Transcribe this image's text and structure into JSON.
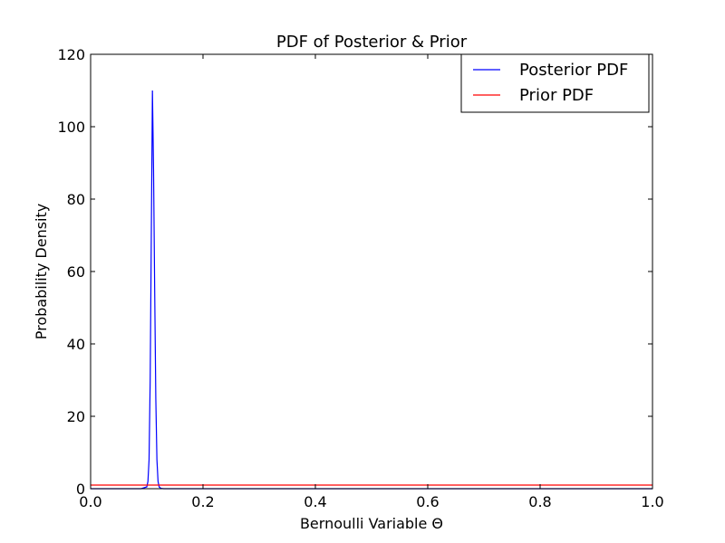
{
  "chart_data": {
    "type": "line",
    "title": "PDF of Posterior & Prior",
    "xlabel": "Bernoulli Variable Θ",
    "ylabel": "Probability Density",
    "xlim": [
      0.0,
      1.0
    ],
    "ylim": [
      0,
      120
    ],
    "xticks": [
      0.0,
      0.2,
      0.4,
      0.6,
      0.8,
      1.0
    ],
    "xtick_labels": [
      "0.0",
      "0.2",
      "0.4",
      "0.6",
      "0.8",
      "1.0"
    ],
    "yticks": [
      0,
      20,
      40,
      60,
      80,
      100,
      120
    ],
    "ytick_labels": [
      "0",
      "20",
      "40",
      "60",
      "80",
      "100",
      "120"
    ],
    "grid": false,
    "legend_position": "top-right",
    "series": [
      {
        "name": "Posterior PDF",
        "color": "#0000ff",
        "x": [
          0.0,
          0.09,
          0.1,
          0.102,
          0.104,
          0.106,
          0.108,
          0.11,
          0.112,
          0.114,
          0.116,
          0.118,
          0.12,
          0.122,
          0.125,
          0.13,
          1.0
        ],
        "y": [
          0,
          0,
          0.5,
          2,
          8,
          30,
          70,
          110,
          88,
          55,
          25,
          8,
          2,
          0.5,
          0.1,
          0,
          0
        ]
      },
      {
        "name": "Prior PDF",
        "color": "#ff0000",
        "x": [
          0.0,
          1.0
        ],
        "y": [
          1,
          1
        ]
      }
    ]
  }
}
